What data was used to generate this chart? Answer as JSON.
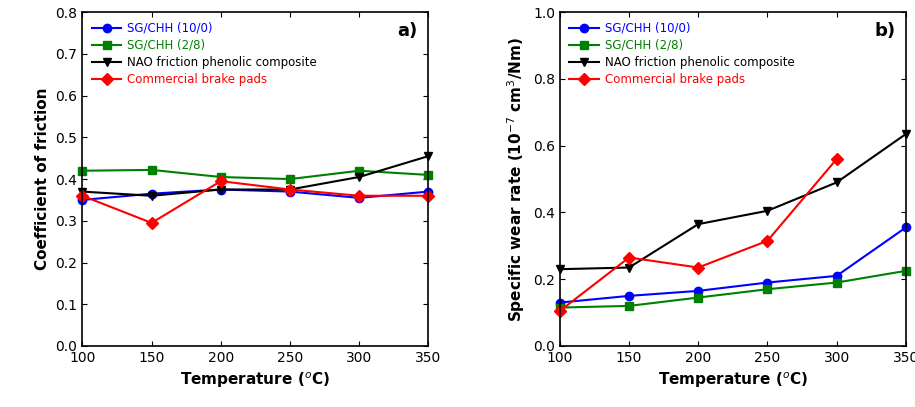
{
  "temperature": [
    100,
    150,
    200,
    250,
    300,
    350
  ],
  "temperature_commercial": [
    100,
    150,
    200,
    250,
    300
  ],
  "cof": {
    "sg_chh_10_0": [
      0.35,
      0.365,
      0.375,
      0.37,
      0.355,
      0.37
    ],
    "sg_chh_2_8": [
      0.42,
      0.422,
      0.405,
      0.4,
      0.42,
      0.41
    ],
    "nao": [
      0.37,
      0.36,
      0.375,
      0.375,
      0.405,
      0.455
    ],
    "commercial": [
      0.36,
      0.295,
      0.395,
      0.375,
      0.36,
      0.36
    ]
  },
  "swr": {
    "sg_chh_10_0": [
      0.13,
      0.15,
      0.165,
      0.19,
      0.21,
      0.355
    ],
    "sg_chh_2_8": [
      0.115,
      0.12,
      0.145,
      0.17,
      0.19,
      0.225
    ],
    "nao": [
      0.23,
      0.235,
      0.365,
      0.405,
      0.49,
      0.635
    ],
    "commercial": [
      0.105,
      0.265,
      0.235,
      0.315,
      0.56
    ]
  },
  "colors": {
    "sg_chh_10_0": "#0000ff",
    "sg_chh_2_8": "#008000",
    "nao": "#000000",
    "commercial": "#ff0000"
  },
  "labels": {
    "sg_chh_10_0": "SG/CHH (10/0)",
    "sg_chh_2_8": "SG/CHH (2/8)",
    "nao": "NAO friction phenolic composite",
    "commercial": "Commercial brake pads"
  },
  "markers": {
    "sg_chh_10_0": "o",
    "sg_chh_2_8": "s",
    "nao": "v",
    "commercial": "D"
  },
  "ylabel_a": "Coefficient of friction",
  "ylabel_b": "Specific wear rate (10$^{-7}$ cm$^3$/Nm)",
  "xlabel": "Temperature ($^o$C)",
  "ylim_a": [
    0,
    0.8
  ],
  "ylim_b": [
    0.0,
    1.0
  ],
  "yticks_a": [
    0,
    0.1,
    0.2,
    0.3,
    0.4,
    0.5,
    0.6,
    0.7,
    0.8
  ],
  "yticks_b": [
    0.0,
    0.2,
    0.4,
    0.6,
    0.8,
    1.0
  ],
  "label_a": "a)",
  "label_b": "b)"
}
